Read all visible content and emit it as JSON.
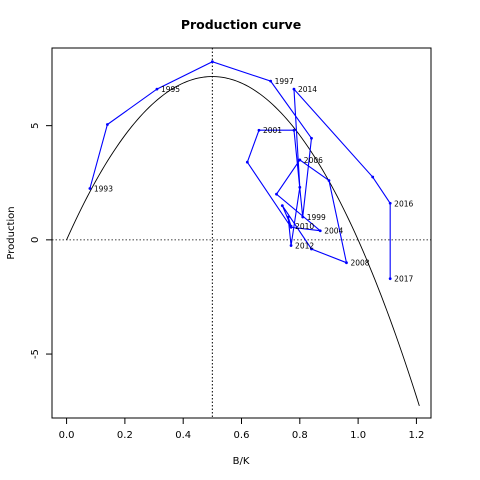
{
  "chart_data": {
    "type": "line",
    "title": "Production curve",
    "xlabel": "B/K",
    "ylabel": "Production",
    "xlim": [
      -0.05,
      1.25
    ],
    "ylim": [
      -7.8,
      8.4
    ],
    "x_ticks": [
      0.0,
      0.2,
      0.4,
      0.6,
      0.8,
      1.0,
      1.2
    ],
    "x_tick_labels": [
      "0.0",
      "0.2",
      "0.4",
      "0.6",
      "0.8",
      "1.0",
      "1.2"
    ],
    "y_ticks": [
      -5,
      0,
      5
    ],
    "y_tick_labels": [
      "-5",
      "0",
      "5"
    ],
    "reference_lines": {
      "vertical_x": 0.5,
      "horizontal_y": 0,
      "style": "dotted"
    },
    "grid": false,
    "legend": "none",
    "curve": {
      "description": "surplus production parabola",
      "r": 1.13,
      "K": 1.0,
      "scale": 25.0,
      "x_range": [
        0.0,
        1.21
      ],
      "color": "#000000"
    },
    "series": [
      {
        "color": "#0000ff",
        "points": [
          {
            "year": "1993",
            "x": 0.08,
            "y": 2.25,
            "label": "1993"
          },
          {
            "year": "",
            "x": 0.14,
            "y": 5.05,
            "label": ""
          },
          {
            "year": "1995",
            "x": 0.31,
            "y": 6.6,
            "label": "1995"
          },
          {
            "year": "",
            "x": 0.5,
            "y": 7.8,
            "label": ""
          },
          {
            "year": "1997",
            "x": 0.7,
            "y": 6.95,
            "label": "1997"
          },
          {
            "year": "",
            "x": 0.84,
            "y": 4.45,
            "label": ""
          },
          {
            "year": "1999",
            "x": 0.81,
            "y": 1.0,
            "label": "1999"
          },
          {
            "year": "",
            "x": 0.78,
            "y": 4.8,
            "label": ""
          },
          {
            "year": "2001",
            "x": 0.66,
            "y": 4.8,
            "label": "2001"
          },
          {
            "year": "",
            "x": 0.62,
            "y": 3.4,
            "label": ""
          },
          {
            "year": "",
            "x": 0.77,
            "y": 0.55,
            "label": ""
          },
          {
            "year": "2004",
            "x": 0.87,
            "y": 0.4,
            "label": "2004"
          },
          {
            "year": "",
            "x": 0.72,
            "y": 2.0,
            "label": ""
          },
          {
            "year": "2006",
            "x": 0.8,
            "y": 3.5,
            "label": "2006"
          },
          {
            "year": "",
            "x": 0.9,
            "y": 2.6,
            "label": ""
          },
          {
            "year": "2008",
            "x": 0.96,
            "y": -1.0,
            "label": "2008"
          },
          {
            "year": "",
            "x": 0.84,
            "y": -0.4,
            "label": ""
          },
          {
            "year": "",
            "x": 0.74,
            "y": 1.5,
            "label": ""
          },
          {
            "year": "2010",
            "x": 0.77,
            "y": 0.6,
            "label": "2010"
          },
          {
            "year": "",
            "x": 0.76,
            "y": 1.0,
            "label": ""
          },
          {
            "year": "2012",
            "x": 0.77,
            "y": -0.25,
            "label": "2012"
          },
          {
            "year": "",
            "x": 0.8,
            "y": 2.3,
            "label": ""
          },
          {
            "year": "2014",
            "x": 0.78,
            "y": 6.6,
            "label": "2014"
          },
          {
            "year": "",
            "x": 1.05,
            "y": 2.75,
            "label": ""
          },
          {
            "year": "2016",
            "x": 1.11,
            "y": 1.6,
            "label": "2016"
          },
          {
            "year": "2017",
            "x": 1.11,
            "y": -1.7,
            "label": "2017"
          }
        ]
      }
    ]
  }
}
